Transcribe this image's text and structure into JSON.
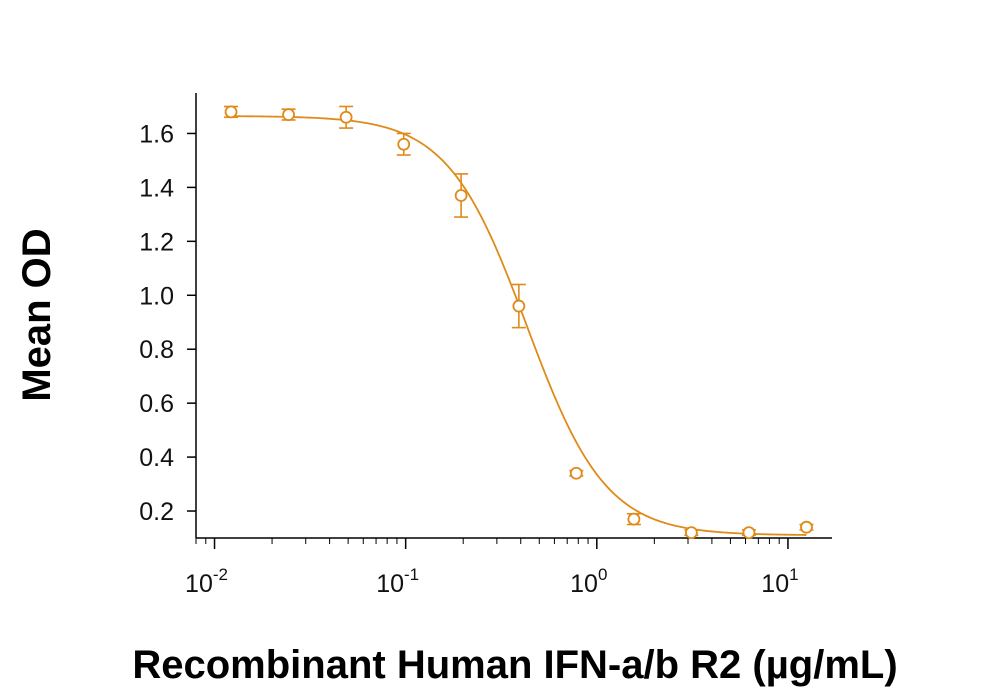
{
  "chart_data": {
    "type": "scatter",
    "xlabel": "Recombinant Human IFN-a/b R2 (µg/mL)",
    "ylabel": "Mean OD",
    "x_scale": "log",
    "xlim": [
      0.008,
      17
    ],
    "ylim": [
      0.1,
      1.75
    ],
    "x_ticks": [
      {
        "value": 0.01,
        "base": "10",
        "exp": "-2"
      },
      {
        "value": 0.1,
        "base": "10",
        "exp": "-1"
      },
      {
        "value": 1,
        "base": "10",
        "exp": "0"
      },
      {
        "value": 10,
        "base": "10",
        "exp": "1"
      }
    ],
    "y_ticks": [
      {
        "value": 0.2,
        "label": "0.2"
      },
      {
        "value": 0.4,
        "label": "0.4"
      },
      {
        "value": 0.6,
        "label": "0.6"
      },
      {
        "value": 0.8,
        "label": "0.8"
      },
      {
        "value": 1.0,
        "label": "1.0"
      },
      {
        "value": 1.2,
        "label": "1.2"
      },
      {
        "value": 1.4,
        "label": "1.4"
      },
      {
        "value": 1.6,
        "label": "1.6"
      }
    ],
    "grid": false,
    "color": "#E08A1A",
    "series": [
      {
        "x": [
          0.0122,
          0.0244,
          0.0488,
          0.0977,
          0.195,
          0.391,
          0.781,
          1.563,
          3.125,
          6.25,
          12.5
        ],
        "y": [
          1.68,
          1.67,
          1.66,
          1.56,
          1.37,
          0.96,
          0.34,
          0.17,
          0.12,
          0.12,
          0.14
        ],
        "error": [
          0.02,
          0.02,
          0.04,
          0.04,
          0.08,
          0.08,
          0.01,
          0.02,
          0.01,
          0.01,
          0.01
        ]
      }
    ],
    "fit": {
      "type": "4PL",
      "top": 1.665,
      "bottom": 0.11,
      "ec50": 0.43,
      "hill": 2.1
    }
  }
}
